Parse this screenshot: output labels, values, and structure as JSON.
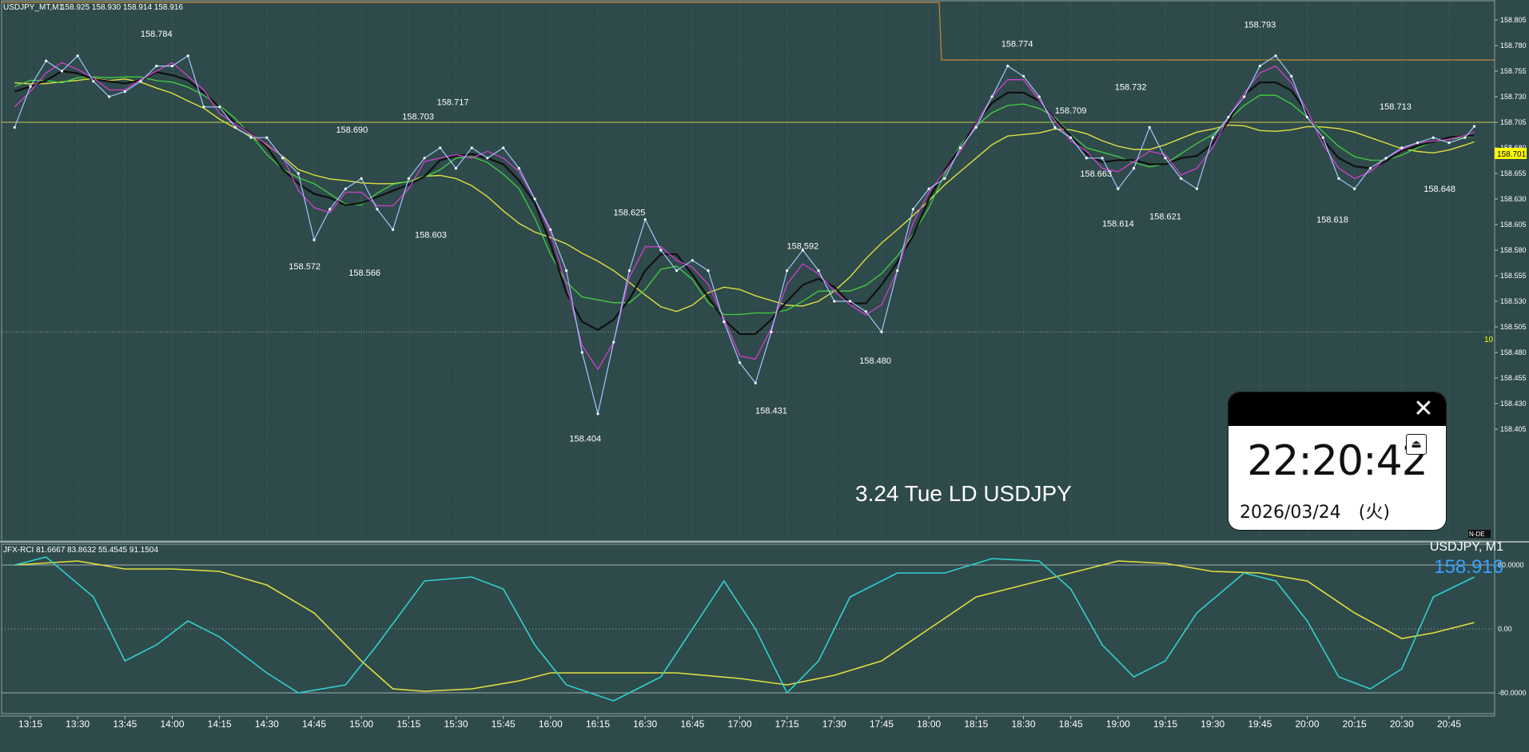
{
  "header": {
    "symbol": "USDJPY_MT,M1",
    "ohlc": "158.925 158.930 158.914 158.916"
  },
  "main_chart": {
    "watermark": "3.24 Tue LD USDJPY",
    "current_price_tag": "158.701",
    "current_price_value": 158.701,
    "right_edge_label": "10",
    "bottom_right_label": "N-DE"
  },
  "clock": {
    "time": "22:20:42",
    "date": "2026/03/24　(火)",
    "close_icon": "close-icon",
    "eject_icon": "eject-icon",
    "close_glyph": "✕",
    "eject_glyph": "⏏"
  },
  "rci_panel": {
    "header": "JFX-RCI 81.6667 83.8632 55.4545 91.1504",
    "symbol_label": "USDJPY, M1",
    "price_label": "158.916",
    "y_labels": [
      "80.0000",
      "0.00",
      "-80.0000"
    ],
    "y_values": [
      80,
      0,
      -80
    ]
  },
  "chart_data": [
    {
      "type": "line",
      "title": "USDJPY_MT,M1",
      "subtitle": "158.925 158.930 158.914 158.916",
      "xlabel": "",
      "ylabel": "",
      "x_ticks": [
        "13:15",
        "13:30",
        "13:45",
        "14:00",
        "14:15",
        "14:30",
        "14:45",
        "15:00",
        "15:15",
        "15:30",
        "15:45",
        "16:00",
        "16:15",
        "16:30",
        "16:45",
        "17:00",
        "17:15",
        "17:30",
        "17:45",
        "18:00",
        "18:15",
        "18:30",
        "18:45",
        "19:00",
        "19:15",
        "19:30",
        "19:45",
        "20:00",
        "20:15",
        "20:30",
        "20:45"
      ],
      "y_ticks": [
        158.805,
        158.78,
        158.755,
        158.73,
        158.705,
        158.68,
        158.655,
        158.63,
        158.605,
        158.58,
        158.555,
        158.53,
        158.505,
        158.48,
        158.455,
        158.43,
        158.405
      ],
      "ylim": [
        158.39,
        158.815
      ],
      "grid": true,
      "horizontal_lines": [
        158.705,
        158.5
      ],
      "series": [
        {
          "values": [
            [
              "13:10",
              158.7
            ],
            [
              "13:15",
              158.74
            ],
            [
              "13:20",
              158.765
            ],
            [
              "13:25",
              158.755
            ],
            [
              "13:30",
              158.77
            ],
            [
              "13:35",
              158.745
            ],
            [
              "13:40",
              158.73
            ],
            [
              "13:45",
              158.735
            ],
            [
              "13:50",
              158.745
            ],
            [
              "13:55",
              158.76
            ],
            [
              "14:00",
              158.76
            ],
            [
              "14:05",
              158.77
            ],
            [
              "14:10",
              158.72
            ],
            [
              "14:15",
              158.72
            ],
            [
              "14:20",
              158.7
            ],
            [
              "14:25",
              158.69
            ],
            [
              "14:30",
              158.69
            ],
            [
              "14:35",
              158.67
            ],
            [
              "14:40",
              158.655
            ],
            [
              "14:45",
              158.59
            ],
            [
              "14:50",
              158.62
            ],
            [
              "14:55",
              158.64
            ],
            [
              "15:00",
              158.65
            ],
            [
              "15:05",
              158.62
            ],
            [
              "15:10",
              158.6
            ],
            [
              "15:15",
              158.65
            ],
            [
              "15:20",
              158.67
            ],
            [
              "15:25",
              158.68
            ],
            [
              "15:30",
              158.66
            ],
            [
              "15:35",
              158.68
            ],
            [
              "15:40",
              158.67
            ],
            [
              "15:45",
              158.68
            ],
            [
              "15:50",
              158.66
            ],
            [
              "15:55",
              158.63
            ],
            [
              "16:00",
              158.6
            ],
            [
              "16:05",
              158.56
            ],
            [
              "16:10",
              158.48
            ],
            [
              "16:15",
              158.42
            ],
            [
              "16:20",
              158.49
            ],
            [
              "16:25",
              158.56
            ],
            [
              "16:30",
              158.61
            ],
            [
              "16:35",
              158.58
            ],
            [
              "16:40",
              158.56
            ],
            [
              "16:45",
              158.57
            ],
            [
              "16:50",
              158.56
            ],
            [
              "16:55",
              158.51
            ],
            [
              "17:00",
              158.47
            ],
            [
              "17:05",
              158.45
            ],
            [
              "17:10",
              158.5
            ],
            [
              "17:15",
              158.56
            ],
            [
              "17:20",
              158.58
            ],
            [
              "17:25",
              158.56
            ],
            [
              "17:30",
              158.53
            ],
            [
              "17:35",
              158.53
            ],
            [
              "17:40",
              158.52
            ],
            [
              "17:45",
              158.5
            ],
            [
              "17:50",
              158.56
            ],
            [
              "17:55",
              158.62
            ],
            [
              "18:00",
              158.64
            ],
            [
              "18:05",
              158.65
            ],
            [
              "18:10",
              158.68
            ],
            [
              "18:15",
              158.7
            ],
            [
              "18:20",
              158.73
            ],
            [
              "18:25",
              158.76
            ],
            [
              "18:30",
              158.75
            ],
            [
              "18:35",
              158.73
            ],
            [
              "18:40",
              158.7
            ],
            [
              "18:45",
              158.69
            ],
            [
              "18:50",
              158.67
            ],
            [
              "18:55",
              158.67
            ],
            [
              "19:00",
              158.64
            ],
            [
              "19:05",
              158.66
            ],
            [
              "19:10",
              158.7
            ],
            [
              "19:15",
              158.67
            ],
            [
              "19:20",
              158.65
            ],
            [
              "19:25",
              158.64
            ],
            [
              "19:30",
              158.69
            ],
            [
              "19:35",
              158.71
            ],
            [
              "19:40",
              158.73
            ],
            [
              "19:45",
              158.76
            ],
            [
              "19:50",
              158.77
            ],
            [
              "19:55",
              158.75
            ],
            [
              "20:00",
              158.71
            ],
            [
              "20:05",
              158.69
            ],
            [
              "20:10",
              158.65
            ],
            [
              "20:15",
              158.64
            ],
            [
              "20:20",
              158.66
            ],
            [
              "20:25",
              158.67
            ],
            [
              "20:30",
              158.68
            ],
            [
              "20:35",
              158.685
            ],
            [
              "20:40",
              158.69
            ],
            [
              "20:45",
              158.685
            ],
            [
              "20:50",
              158.69
            ],
            [
              "20:53",
              158.701
            ]
          ]
        }
      ],
      "price_labels": [
        {
          "x": "13:55",
          "y": 158.784,
          "label": "158.784"
        },
        {
          "x": "14:42",
          "y": 158.572,
          "label": "158.572"
        },
        {
          "x": "14:57",
          "y": 158.69,
          "label": "158.690"
        },
        {
          "x": "15:01",
          "y": 158.566,
          "label": "158.566"
        },
        {
          "x": "15:18",
          "y": 158.703,
          "label": "158.703"
        },
        {
          "x": "15:22",
          "y": 158.603,
          "label": "158.603"
        },
        {
          "x": "15:29",
          "y": 158.717,
          "label": "158.717"
        },
        {
          "x": "16:11",
          "y": 158.404,
          "label": "158.404"
        },
        {
          "x": "16:25",
          "y": 158.625,
          "label": "158.625"
        },
        {
          "x": "17:10",
          "y": 158.431,
          "label": "158.431"
        },
        {
          "x": "17:20",
          "y": 158.592,
          "label": "158.592"
        },
        {
          "x": "17:43",
          "y": 158.48,
          "label": "158.480"
        },
        {
          "x": "18:28",
          "y": 158.774,
          "label": "158.774"
        },
        {
          "x": "18:45",
          "y": 158.709,
          "label": "158.709"
        },
        {
          "x": "18:53",
          "y": 158.663,
          "label": "158.663"
        },
        {
          "x": "19:00",
          "y": 158.614,
          "label": "158.614"
        },
        {
          "x": "19:04",
          "y": 158.732,
          "label": "158.732"
        },
        {
          "x": "19:15",
          "y": 158.621,
          "label": "158.621"
        },
        {
          "x": "19:45",
          "y": 158.793,
          "label": "158.793"
        },
        {
          "x": "20:08",
          "y": 158.618,
          "label": "158.618"
        },
        {
          "x": "20:28",
          "y": 158.713,
          "label": "158.713"
        },
        {
          "x": "20:42",
          "y": 158.648,
          "label": "158.648"
        }
      ]
    },
    {
      "type": "line",
      "title": "JFX-RCI",
      "subtitle": "81.6667 83.8632 55.4545 91.1504",
      "xlabel": "",
      "ylabel": "",
      "ylim": [
        -100,
        100
      ],
      "y_ticks": [
        80,
        0,
        -80
      ],
      "grid": false,
      "series": [
        {
          "values": [
            [
              "13:10",
              80
            ],
            [
              "13:30",
              85
            ],
            [
              "13:45",
              75
            ],
            [
              "14:00",
              75
            ],
            [
              "14:15",
              72
            ],
            [
              "14:30",
              55
            ],
            [
              "14:45",
              20
            ],
            [
              "15:00",
              -40
            ],
            [
              "15:10",
              -75
            ],
            [
              "15:20",
              -78
            ],
            [
              "15:35",
              -75
            ],
            [
              "15:50",
              -65
            ],
            [
              "16:00",
              -55
            ],
            [
              "16:20",
              -55
            ],
            [
              "16:40",
              -55
            ],
            [
              "17:00",
              -62
            ],
            [
              "17:15",
              -70
            ],
            [
              "17:30",
              -58
            ],
            [
              "17:45",
              -40
            ],
            [
              "18:00",
              0
            ],
            [
              "18:15",
              40
            ],
            [
              "18:30",
              55
            ],
            [
              "18:45",
              70
            ],
            [
              "19:00",
              85
            ],
            [
              "19:15",
              82
            ],
            [
              "19:30",
              72
            ],
            [
              "19:45",
              70
            ],
            [
              "20:00",
              60
            ],
            [
              "20:15",
              20
            ],
            [
              "20:30",
              -12
            ],
            [
              "20:40",
              -5
            ],
            [
              "20:53",
              8
            ]
          ]
        },
        {
          "values": [
            [
              "13:10",
              80
            ],
            [
              "13:20",
              90
            ],
            [
              "13:35",
              40
            ],
            [
              "13:45",
              -40
            ],
            [
              "13:55",
              -20
            ],
            [
              "14:05",
              10
            ],
            [
              "14:15",
              -10
            ],
            [
              "14:30",
              -55
            ],
            [
              "14:40",
              -80
            ],
            [
              "14:55",
              -70
            ],
            [
              "15:05",
              -20
            ],
            [
              "15:20",
              60
            ],
            [
              "15:35",
              65
            ],
            [
              "15:45",
              50
            ],
            [
              "15:55",
              -20
            ],
            [
              "16:05",
              -70
            ],
            [
              "16:20",
              -90
            ],
            [
              "16:35",
              -60
            ],
            [
              "16:45",
              0
            ],
            [
              "16:55",
              60
            ],
            [
              "17:05",
              0
            ],
            [
              "17:15",
              -80
            ],
            [
              "17:25",
              -40
            ],
            [
              "17:35",
              40
            ],
            [
              "17:50",
              70
            ],
            [
              "18:05",
              70
            ],
            [
              "18:20",
              88
            ],
            [
              "18:35",
              85
            ],
            [
              "18:45",
              50
            ],
            [
              "18:55",
              -20
            ],
            [
              "19:05",
              -60
            ],
            [
              "19:15",
              -40
            ],
            [
              "19:25",
              20
            ],
            [
              "19:40",
              70
            ],
            [
              "19:50",
              60
            ],
            [
              "20:00",
              10
            ],
            [
              "20:10",
              -60
            ],
            [
              "20:20",
              -75
            ],
            [
              "20:30",
              -50
            ],
            [
              "20:40",
              40
            ],
            [
              "20:53",
              65
            ]
          ]
        }
      ]
    }
  ]
}
